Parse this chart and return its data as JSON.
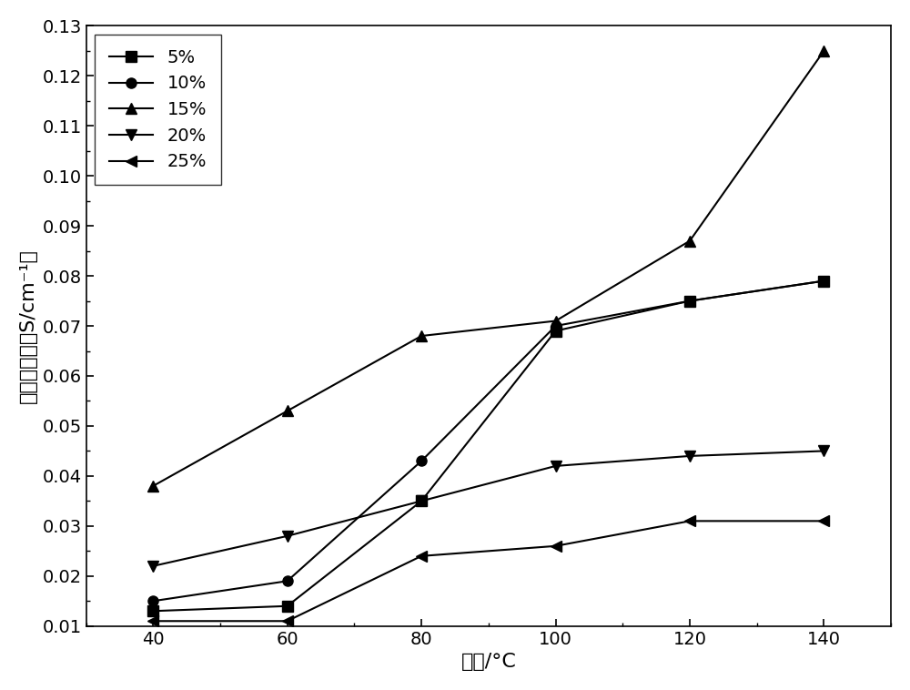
{
  "x": [
    40,
    60,
    80,
    100,
    120,
    140
  ],
  "series": [
    {
      "label": "5%",
      "marker": "s",
      "values": [
        0.013,
        0.014,
        0.035,
        0.069,
        0.075,
        0.079
      ]
    },
    {
      "label": "10%",
      "marker": "o",
      "values": [
        0.015,
        0.019,
        0.043,
        0.07,
        0.075,
        0.079
      ]
    },
    {
      "label": "15%",
      "marker": "^",
      "values": [
        0.038,
        0.053,
        0.068,
        0.071,
        0.087,
        0.125
      ]
    },
    {
      "label": "20%",
      "marker": "v",
      "values": [
        0.022,
        0.028,
        0.035,
        0.042,
        0.044,
        0.045
      ]
    },
    {
      "label": "25%",
      "marker": "<",
      "values": [
        0.011,
        0.011,
        0.024,
        0.026,
        0.031,
        0.031
      ]
    }
  ],
  "xlabel": "温度/°C",
  "ylabel": "离子导电率（S/cm⁻¹）",
  "xlim": [
    30,
    150
  ],
  "ylim": [
    0.01,
    0.13
  ],
  "yticks": [
    0.01,
    0.02,
    0.03,
    0.04,
    0.05,
    0.06,
    0.07,
    0.08,
    0.09,
    0.1,
    0.11,
    0.12,
    0.13
  ],
  "xticks": [
    40,
    60,
    80,
    100,
    120,
    140
  ],
  "line_color": "#000000",
  "background_color": "#ffffff",
  "label_fontsize": 16,
  "tick_fontsize": 14,
  "legend_fontsize": 14,
  "line_width": 1.5,
  "marker_size": 8
}
